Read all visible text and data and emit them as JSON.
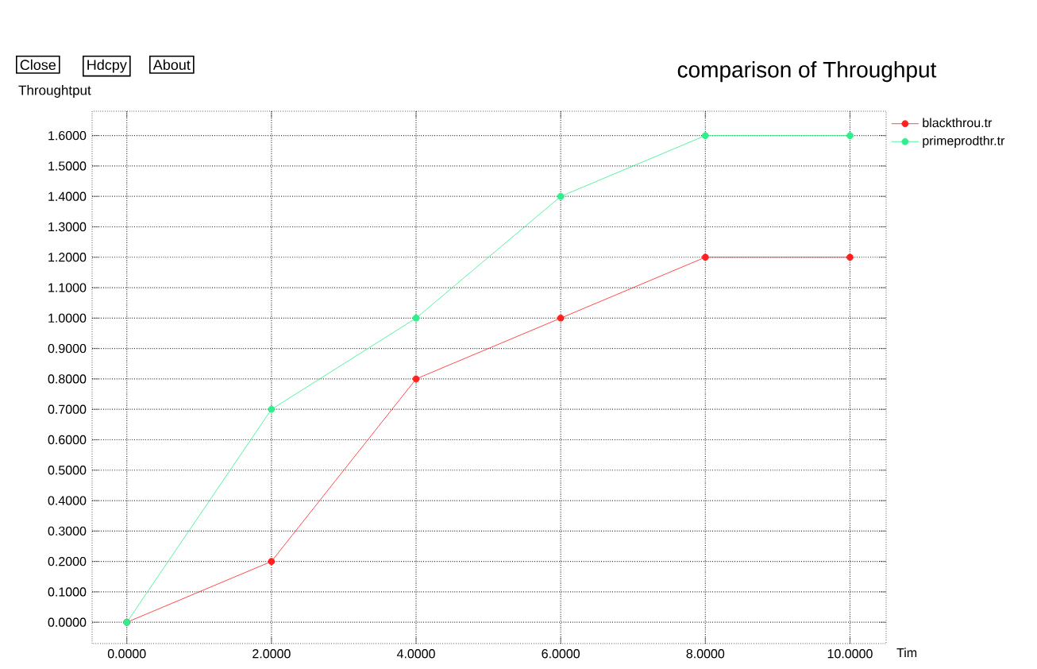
{
  "chart_data": {
    "type": "line",
    "title": "comparison of Throughput",
    "xlabel": "Tim",
    "ylabel": "Throughtput",
    "annotations": [
      "Close",
      "Hdcpy",
      "About"
    ],
    "x": [
      0,
      2,
      4,
      6,
      8,
      10
    ],
    "series": [
      {
        "name": "blackthrou.tr",
        "color": "#ff2020",
        "values": [
          0,
          0.2,
          0.8,
          1.0,
          1.2,
          1.2
        ]
      },
      {
        "name": "primeprodthr.tr",
        "color": "#2ef08a",
        "values": [
          0,
          0.7,
          1.0,
          1.4,
          1.6,
          1.6
        ]
      }
    ],
    "xlim": [
      -0.48,
      10.5
    ],
    "ylim": [
      -0.07,
      1.68
    ],
    "xticks": [
      {
        "value": 0,
        "label": "0.0000"
      },
      {
        "value": 2,
        "label": "2.0000"
      },
      {
        "value": 4,
        "label": "4.0000"
      },
      {
        "value": 6,
        "label": "6.0000"
      },
      {
        "value": 8,
        "label": "8.0000"
      },
      {
        "value": 10,
        "label": "10.0000"
      }
    ],
    "yticks": [
      {
        "value": 0,
        "label": "0.0000"
      },
      {
        "value": 0.1,
        "label": "0.1000"
      },
      {
        "value": 0.2,
        "label": "0.2000"
      },
      {
        "value": 0.3,
        "label": "0.3000"
      },
      {
        "value": 0.4,
        "label": "0.4000"
      },
      {
        "value": 0.5,
        "label": "0.5000"
      },
      {
        "value": 0.6,
        "label": "0.6000"
      },
      {
        "value": 0.7,
        "label": "0.7000"
      },
      {
        "value": 0.8,
        "label": "0.8000"
      },
      {
        "value": 0.9,
        "label": "0.9000"
      },
      {
        "value": 1.0,
        "label": "1.0000"
      },
      {
        "value": 1.1,
        "label": "1.1000"
      },
      {
        "value": 1.2,
        "label": "1.2000"
      },
      {
        "value": 1.3,
        "label": "1.3000"
      },
      {
        "value": 1.4,
        "label": "1.4000"
      },
      {
        "value": 1.5,
        "label": "1.5000"
      },
      {
        "value": 1.6,
        "label": "1.6000"
      }
    ],
    "grid": true,
    "legend": "right",
    "marker": "circle",
    "line_style": "solid"
  }
}
